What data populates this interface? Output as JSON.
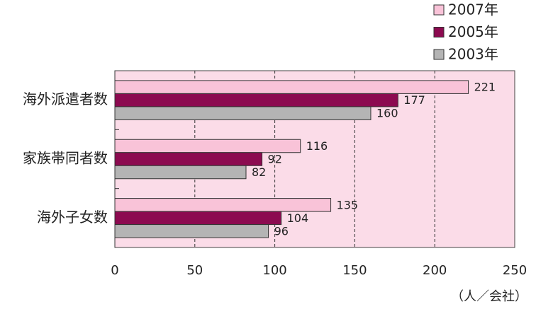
{
  "chart_data": {
    "type": "barh",
    "categories": [
      "海外派遣者数",
      "家族帯同者数",
      "海外子女数"
    ],
    "series": [
      {
        "name": "2007年",
        "color": "#f9c3d8",
        "values": [
          221,
          116,
          135
        ]
      },
      {
        "name": "2005年",
        "color": "#8c0a50",
        "values": [
          177,
          92,
          104
        ]
      },
      {
        "name": "2003年",
        "color": "#b4b4b4",
        "values": [
          160,
          82,
          96
        ]
      }
    ],
    "xlim": [
      0,
      250
    ],
    "xticks": [
      0,
      50,
      100,
      150,
      200,
      250
    ],
    "xlabel": "（人／会社）",
    "grid": true,
    "background": "#fbdce8",
    "legend": "top-right"
  }
}
